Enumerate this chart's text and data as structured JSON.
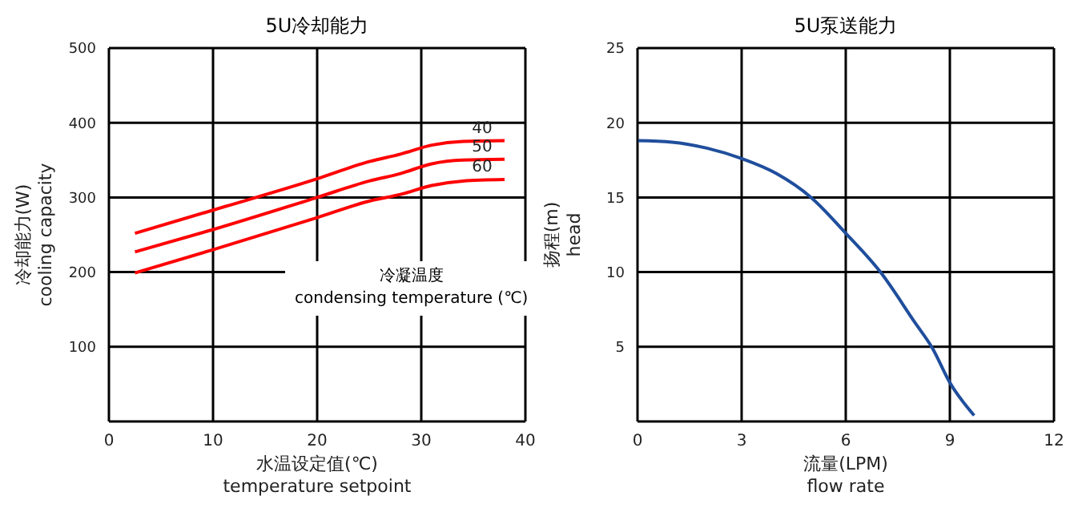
{
  "chart_data": [
    {
      "type": "line",
      "title": "5U冷却能力",
      "xlabel": "水温设定值(℃)\ntemperature setpoint",
      "ylabel": "冷却能力(W)\ncooling capacity",
      "legend_title": "冷凝温度\ncondensing temperature (℃)",
      "x": [
        2.5,
        10,
        20,
        25,
        28,
        31,
        34,
        38
      ],
      "xlim": [
        0,
        40
      ],
      "xticks": [
        0,
        10,
        20,
        30,
        40
      ],
      "ylim": [
        0,
        500
      ],
      "yticks": [
        {
          "value": 0,
          "label": null
        },
        100,
        200,
        300,
        400,
        500
      ],
      "grid": true,
      "marker": "none",
      "line_style": "solid",
      "series": [
        {
          "name": "40",
          "color": "#ff0000",
          "values": [
            252,
            283,
            325,
            348,
            358,
            370,
            375,
            376
          ]
        },
        {
          "name": "50",
          "color": "#ff0000",
          "values": [
            227,
            257,
            300,
            322,
            332,
            345,
            350,
            351
          ]
        },
        {
          "name": "60",
          "color": "#ff0000",
          "values": [
            199,
            230,
            273,
            295,
            304,
            316,
            322,
            324
          ]
        }
      ]
    },
    {
      "type": "line",
      "title": "5U泵送能力",
      "xlabel": "流量(LPM)\nflow rate",
      "ylabel": "扬程(m)\nhead",
      "x": [
        0,
        1,
        2,
        3,
        4,
        5,
        6,
        7,
        8,
        8.5,
        9,
        9.7
      ],
      "xlim": [
        0,
        12
      ],
      "xticks": [
        0,
        3,
        6,
        9,
        12
      ],
      "ylim": [
        0,
        25
      ],
      "yticks": [
        {
          "value": 0,
          "label": null
        },
        5,
        10,
        15,
        20,
        25
      ],
      "grid": true,
      "marker": "none",
      "line_style": "solid",
      "series": [
        {
          "color": "#1f4e9c",
          "values": [
            18.8,
            18.7,
            18.3,
            17.6,
            16.6,
            15,
            12.6,
            10,
            6.6,
            4.9,
            2.6,
            0.4
          ]
        }
      ]
    }
  ]
}
